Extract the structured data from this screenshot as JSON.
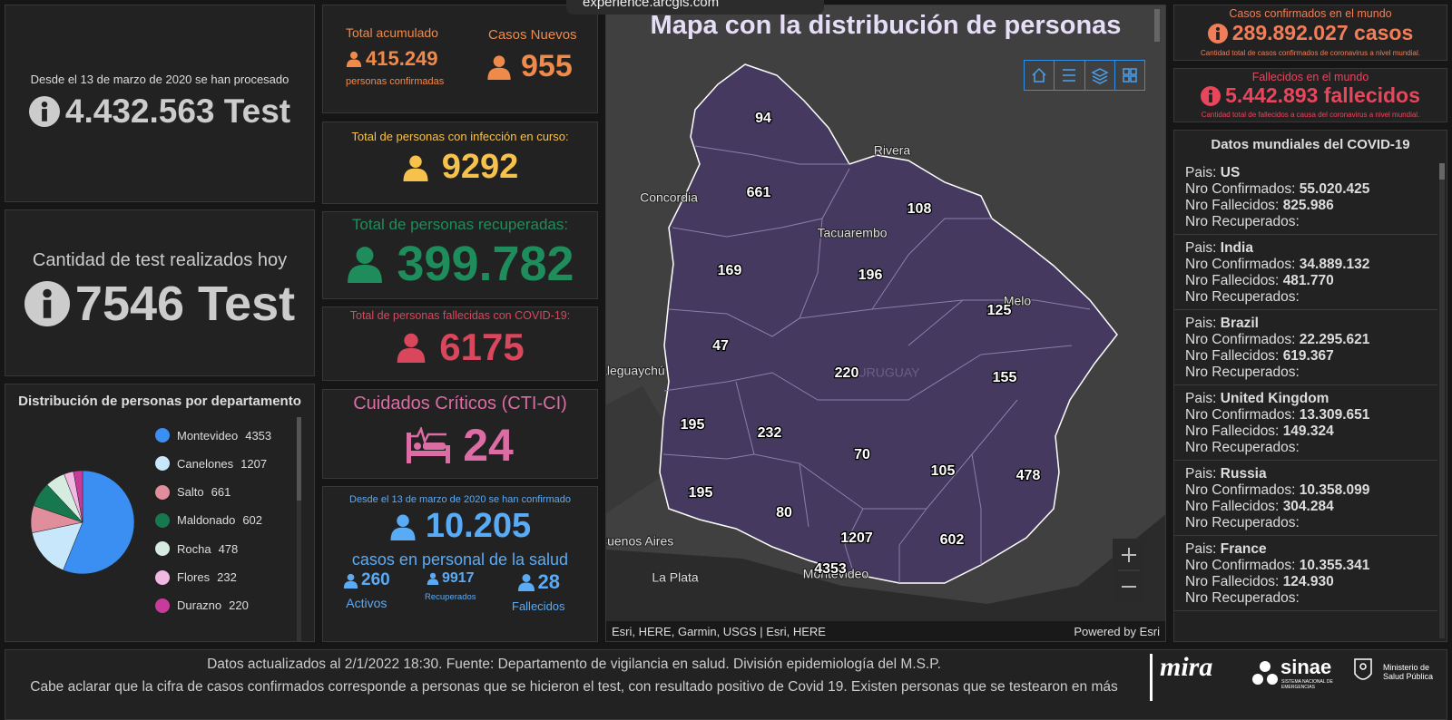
{
  "top_banner": "experience.arcgis.com",
  "tests_total": {
    "caption": "Desde el 13 de marzo de 2020 se han procesado",
    "value": "4.432.563 Test"
  },
  "tests_today": {
    "title": "Cantidad de test realizados hoy",
    "value": "7546 Test"
  },
  "distribution": {
    "type": "pie",
    "title": "Distribución de personas por departamento",
    "categories": [
      "Montevideo",
      "Canelones",
      "Salto",
      "Maldonado",
      "Rocha",
      "Flores",
      "Durazno"
    ],
    "values": [
      4353,
      1207,
      661,
      602,
      478,
      232,
      220
    ],
    "colors": [
      "#3b8ef2",
      "#c9e7fb",
      "#e08d9c",
      "#17784f",
      "#d7ece0",
      "#f0b9e1",
      "#c73c9b"
    ]
  },
  "accumulated": {
    "title": "Total acumulado",
    "value": "415.249",
    "caption": "personas confirmadas"
  },
  "new_cases": {
    "title": "Casos Nuevos",
    "value": "955"
  },
  "active": {
    "title": "Total de personas con infección en curso:",
    "value": "9292"
  },
  "recovered": {
    "title": "Total de personas recuperadas:",
    "value": "399.782"
  },
  "deaths": {
    "title": "Total de personas fallecidas con COVID-19:",
    "value": "6175"
  },
  "critical": {
    "title": "Cuidados Críticos (CTI-CI)",
    "value": "24"
  },
  "health_staff": {
    "caption": "Desde el 13 de marzo de 2020 se han confirmado",
    "value": "10.205",
    "subtitle": "casos en personal de la salud",
    "stats": [
      {
        "value": "260",
        "label": "Activos"
      },
      {
        "value": "9917",
        "label": "Recuperados"
      },
      {
        "value": "28",
        "label": "Fallecidos"
      }
    ]
  },
  "map": {
    "title": "Mapa con la distribución de personas",
    "department_counts": [
      94,
      661,
      108,
      169,
      196,
      125,
      47,
      220,
      155,
      195,
      232,
      70,
      105,
      478,
      195,
      80,
      1207,
      602,
      4353
    ],
    "place_labels": [
      "Concordia",
      "Rivera",
      "Tacuarembo",
      "Melo",
      "ualeguaychú",
      "Buenos Aires",
      "La Plata",
      "Montevideo",
      "URUGUAY"
    ],
    "attribution": "Esri, HERE, Garmin, USGS | Esri, HERE",
    "powered_by": "Powered by Esri"
  },
  "world_cases": {
    "title": "Casos confirmados en el mundo",
    "value": "289.892.027 casos",
    "caption": "Cantidad total de casos confirmados de coronavirus a nivel mundial."
  },
  "world_deaths": {
    "title": "Fallecidos en el mundo",
    "value": "5.442.893 fallecidos",
    "caption": "Cantidad total de fallecidos a causa del coronavirus a nivel mundial."
  },
  "world_list": {
    "title": "Datos mundiales del COVID-19",
    "field_labels": {
      "country": "Pais:",
      "confirmed": "Nro Confirmados:",
      "deaths": "Nro Fallecidos:",
      "recovered": "Nro Recuperados:"
    },
    "countries": [
      {
        "country": "US",
        "confirmed": "55.020.425",
        "deaths": "825.986"
      },
      {
        "country": "India",
        "confirmed": "34.889.132",
        "deaths": "481.770"
      },
      {
        "country": "Brazil",
        "confirmed": "22.295.621",
        "deaths": "619.367"
      },
      {
        "country": "United Kingdom",
        "confirmed": "13.309.651",
        "deaths": "149.324"
      },
      {
        "country": "Russia",
        "confirmed": "10.358.099",
        "deaths": "304.284"
      },
      {
        "country": "France",
        "confirmed": "10.355.341",
        "deaths": "124.930"
      }
    ]
  },
  "footer": {
    "update_note": "Datos actualizados al 2/1/2022 18:30. Fuente: Departamento de vigilancia en salud. División epidemiología del M.S.P.",
    "disclaimer": "Cabe aclarar que la cifra de casos confirmados corresponde a personas que se hicieron el test, con resultado positivo de Covid 19. Existen personas que se testearon en más"
  },
  "logos": {
    "mira": "mira",
    "sinae": "sinae",
    "sinae_caption": "SISTEMA NACIONAL DE EMERGENCIAS",
    "ministry": "Ministerio de Salud Pública"
  }
}
